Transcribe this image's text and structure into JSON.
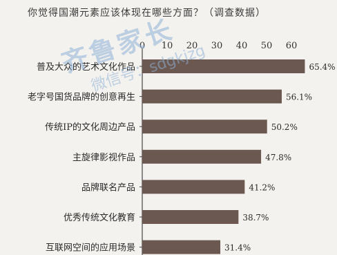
{
  "chart_data": {
    "type": "bar",
    "orientation": "horizontal",
    "title": "你觉得国潮元素应该体现在哪些方面？（调查数据）",
    "xlim": [
      0,
      70
    ],
    "xticks": [
      "0",
      "10",
      "20",
      "30",
      "40",
      "50",
      "60"
    ],
    "xtick_values": [
      0,
      10,
      20,
      30,
      40,
      50,
      60
    ],
    "categories": [
      "普及大众的艺术文化作品",
      "老字号国货品牌的创意再生",
      "传统IP的文化周边产品",
      "主旋律影视作品",
      "品牌联名产品",
      "优秀传统文化教育",
      "互联网空间的应用场景"
    ],
    "values": [
      65.4,
      56.1,
      50.2,
      47.8,
      41.2,
      38.7,
      31.4
    ],
    "value_labels": [
      "65.4%",
      "56.1%",
      "50.2%",
      "47.8%",
      "41.2%",
      "38.7%",
      "31.4%"
    ],
    "bar_color": "#6b5850",
    "grid": false
  },
  "watermark": {
    "main": "齐鲁家长",
    "sub": "微信号：sdgkjzg"
  }
}
